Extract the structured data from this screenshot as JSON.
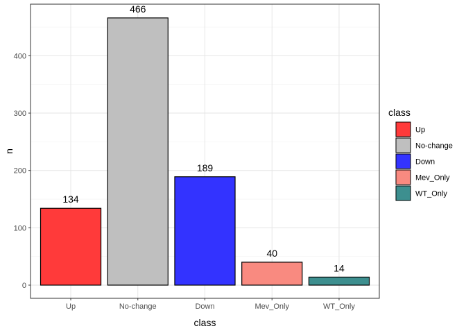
{
  "chart_data": {
    "type": "bar",
    "categories": [
      "Up",
      "No-change",
      "Down",
      "Mev_Only",
      "WT_Only"
    ],
    "values": [
      134,
      466,
      189,
      40,
      14
    ],
    "colors": [
      "#ff3a3a",
      "#bfbfbf",
      "#3333ff",
      "#f98a80",
      "#3d8f8f"
    ],
    "title": "",
    "xlabel": "class",
    "ylabel": "n",
    "ylim": [
      0,
      490
    ],
    "yticks": [
      0,
      100,
      200,
      300,
      400
    ],
    "grid": true,
    "legend": {
      "title": "class",
      "placement": "right",
      "entries": [
        "Up",
        "No-change",
        "Down",
        "Mev_Only",
        "WT_Only"
      ]
    }
  }
}
